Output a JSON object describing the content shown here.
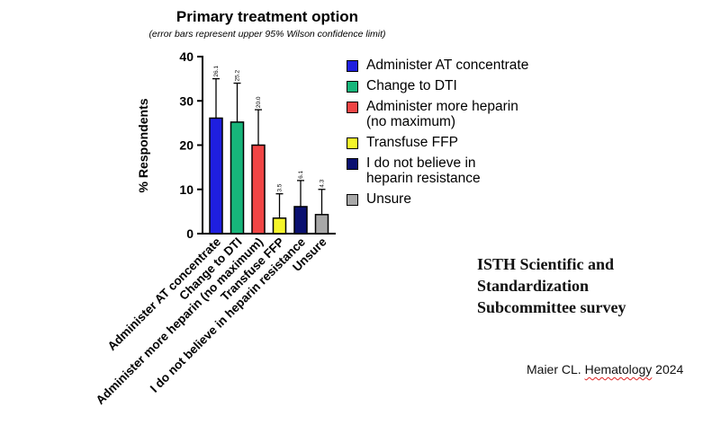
{
  "chart_data": {
    "type": "bar",
    "title": "Primary treatment option",
    "subtitle": "(error bars represent upper 95% Wilson confidence limit)",
    "xlabel": "",
    "ylabel": "% Respondents",
    "ylim": [
      0,
      40
    ],
    "yticks": [
      0,
      10,
      20,
      30,
      40
    ],
    "grid": false,
    "legend_position": "right",
    "categories": [
      "Administer AT concentrate",
      "Change to DTI",
      "Administer more heparin (no maximum)",
      "Transfuse FFP",
      "I do not believe in heparin resistance",
      "Unsure"
    ],
    "legend_labels": [
      "Administer AT concentrate",
      "Change to DTI",
      "Administer more heparin\n(no maximum)",
      "Transfuse FFP",
      "I do not believe in\nheparin resistance",
      "Unsure"
    ],
    "values": [
      26.1,
      25.2,
      20.0,
      3.5,
      6.1,
      4.3
    ],
    "value_labels": [
      "26.1",
      "25.2",
      "20.0",
      "3.5",
      "6.1",
      "4.3"
    ],
    "error_upper": [
      35,
      34,
      28,
      9,
      12,
      10
    ],
    "colors": [
      "#1f1fe0",
      "#17b57a",
      "#f04545",
      "#f5f52a",
      "#0a1070",
      "#a8a8a8"
    ]
  },
  "annotation": {
    "org": "ISTH Scientific and\nStandardization\nSubcommittee survey",
    "cite_prefix": "Maier CL. ",
    "cite_journal": "Hematology",
    "cite_year": " 2024"
  }
}
